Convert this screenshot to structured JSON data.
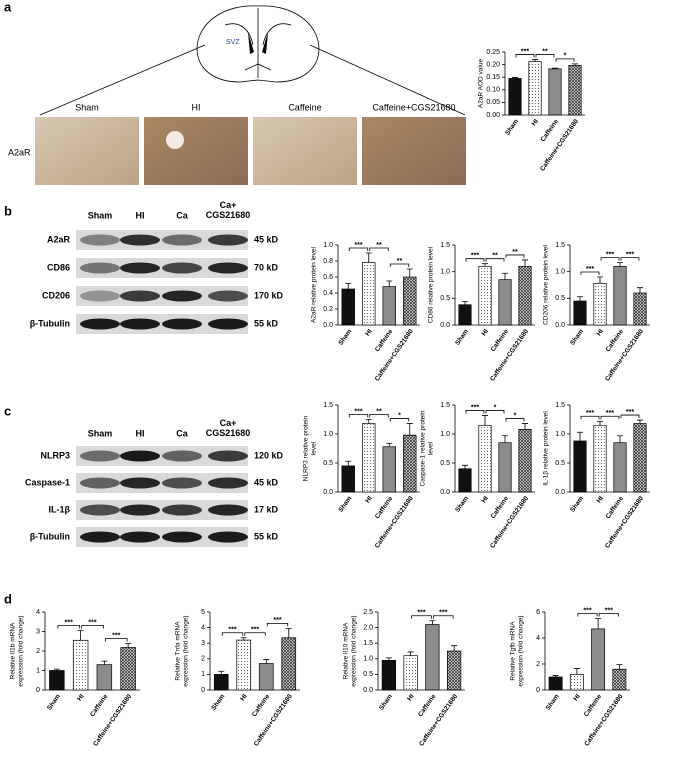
{
  "panels": {
    "a": "a",
    "b": "b",
    "c": "c",
    "d": "d"
  },
  "brain": {
    "region": "SVZ"
  },
  "micrographs": {
    "row_label": "A2aR",
    "columns": [
      "Sham",
      "HI",
      "Caffeine",
      "Caffeine+CGS21680"
    ]
  },
  "blots": [
    {
      "lanes": [
        "Sham",
        "HI",
        "Ca",
        "Ca+ CGS21680"
      ],
      "rows": [
        {
          "name": "A2aR",
          "size": "45 kD"
        },
        {
          "name": "CD86",
          "size": "70 kD"
        },
        {
          "name": "CD206",
          "size": "170 kD"
        },
        {
          "name": "β-Tubulin",
          "size": "55 kD"
        }
      ]
    },
    {
      "lanes": [
        "Sham",
        "HI",
        "Ca",
        "Ca+ CGS21680"
      ],
      "rows": [
        {
          "name": "NLRP3",
          "size": "120 kD"
        },
        {
          "name": "Caspase-1",
          "size": "45 kD"
        },
        {
          "name": "IL-1β",
          "size": "17 kD"
        },
        {
          "name": "β-Tubulin",
          "size": "55 kD"
        }
      ]
    }
  ],
  "chart_data": [
    {
      "type": "bar",
      "y_label": [
        "A2aR AOD value"
      ],
      "categories": [
        "Sham",
        "HI",
        "Caffeine",
        "Caffeine+CGS21680"
      ],
      "values": [
        0.145,
        0.212,
        0.183,
        0.197
      ],
      "errors": [
        0.004,
        0.008,
        0.003,
        0.006
      ],
      "ylim": [
        0,
        0.25
      ],
      "yticks": [
        {
          "value": 0,
          "label": "0.00"
        },
        0.05,
        {
          "value": 0.1,
          "label": "0.10"
        },
        0.15,
        {
          "value": 0.2,
          "label": "0.20"
        },
        0.25
      ],
      "annotations": [
        {
          "from": 0,
          "to": 1,
          "label": "***"
        },
        {
          "from": 1,
          "to": 2,
          "label": "**"
        },
        {
          "from": 2,
          "to": 3,
          "label": "*"
        }
      ]
    },
    {
      "type": "bar",
      "y_label": [
        "A2aR relative protein level"
      ],
      "categories": [
        "Sham",
        "HI",
        "Caffeine",
        "Caffeine+CGS21680"
      ],
      "values": [
        0.45,
        0.78,
        0.48,
        0.6
      ],
      "errors": [
        0.07,
        0.12,
        0.07,
        0.1
      ],
      "ylim": [
        0,
        1
      ],
      "yticks": [
        {
          "value": 0,
          "label": "0.0"
        },
        0.2,
        0.4,
        0.6,
        0.8,
        {
          "value": 1,
          "label": "1.0"
        }
      ],
      "annotations": [
        {
          "from": 0,
          "to": 1,
          "label": "***"
        },
        {
          "from": 1,
          "to": 2,
          "label": "**"
        },
        {
          "from": 2,
          "to": 3,
          "label": "**"
        }
      ]
    },
    {
      "type": "bar",
      "y_label": [
        "CD86 relative protein level"
      ],
      "categories": [
        "Sham",
        "HI",
        "Caffeine",
        "Caffeine+CGS21680"
      ],
      "values": [
        0.38,
        1.1,
        0.85,
        1.1
      ],
      "errors": [
        0.06,
        0.05,
        0.12,
        0.12
      ],
      "ylim": [
        0,
        1.5
      ],
      "yticks": [
        {
          "value": 0,
          "label": "0.0"
        },
        0.5,
        {
          "value": 1,
          "label": "1.0"
        },
        1.5
      ],
      "annotations": [
        {
          "from": 0,
          "to": 1,
          "label": "***"
        },
        {
          "from": 1,
          "to": 2,
          "label": "**"
        },
        {
          "from": 2,
          "to": 3,
          "label": "**"
        }
      ]
    },
    {
      "type": "bar",
      "y_label": [
        "CD206 relative protein level"
      ],
      "categories": [
        "Sham",
        "HI",
        "Caffeine",
        "Caffeine+CGS21680"
      ],
      "values": [
        0.45,
        0.78,
        1.1,
        0.6
      ],
      "errors": [
        0.08,
        0.12,
        0.07,
        0.1
      ],
      "ylim": [
        0,
        1.5
      ],
      "yticks": [
        {
          "value": 0,
          "label": "0.0"
        },
        0.5,
        {
          "value": 1,
          "label": "1.0"
        },
        1.5
      ],
      "annotations": [
        {
          "from": 0,
          "to": 1,
          "label": "***"
        },
        {
          "from": 1,
          "to": 2,
          "label": "***"
        },
        {
          "from": 2,
          "to": 3,
          "label": "***"
        }
      ]
    },
    {
      "type": "bar",
      "y_label": [
        "NLRP3 relative protein",
        "level"
      ],
      "categories": [
        "Sham",
        "HI",
        "Caffeine",
        "Caffeine+CGS21680"
      ],
      "values": [
        0.45,
        1.18,
        0.78,
        0.98
      ],
      "errors": [
        0.08,
        0.07,
        0.06,
        0.2
      ],
      "ylim": [
        0,
        1.5
      ],
      "yticks": [
        {
          "value": 0,
          "label": "0.0"
        },
        0.5,
        {
          "value": 1,
          "label": "1.0"
        },
        1.5
      ],
      "annotations": [
        {
          "from": 0,
          "to": 1,
          "label": "***"
        },
        {
          "from": 1,
          "to": 2,
          "label": "**"
        },
        {
          "from": 2,
          "to": 3,
          "label": "*"
        }
      ]
    },
    {
      "type": "bar",
      "y_label": [
        "Caspase-1 relative protein",
        "level"
      ],
      "categories": [
        "Sham",
        "HI",
        "Caffeine",
        "Caffeine+CGS21680"
      ],
      "values": [
        0.4,
        1.15,
        0.85,
        1.08
      ],
      "errors": [
        0.06,
        0.17,
        0.12,
        0.1
      ],
      "ylim": [
        0,
        1.5
      ],
      "yticks": [
        {
          "value": 0,
          "label": "0.0"
        },
        0.5,
        {
          "value": 1,
          "label": "1.0"
        },
        1.5
      ],
      "annotations": [
        {
          "from": 0,
          "to": 1,
          "label": "***"
        },
        {
          "from": 1,
          "to": 2,
          "label": "*"
        },
        {
          "from": 2,
          "to": 3,
          "label": "*"
        }
      ]
    },
    {
      "type": "bar",
      "y_label": [
        "IL-1β relative protein level"
      ],
      "categories": [
        "Sham",
        "HI",
        "Caffeine",
        "Caffeine+CGS21680"
      ],
      "values": [
        0.88,
        1.15,
        0.85,
        1.18
      ],
      "errors": [
        0.15,
        0.07,
        0.12,
        0.06
      ],
      "ylim": [
        0,
        1.5
      ],
      "yticks": [
        {
          "value": 0,
          "label": "0.0"
        },
        0.5,
        {
          "value": 1,
          "label": "1.0"
        },
        1.5
      ],
      "annotations": [
        {
          "from": 0,
          "to": 1,
          "label": "***"
        },
        {
          "from": 1,
          "to": 2,
          "label": "***"
        },
        {
          "from": 2,
          "to": 3,
          "label": "***"
        }
      ]
    },
    {
      "type": "bar",
      "y_label": [
        "Relative Il1b mRNA",
        "expression (fold change)"
      ],
      "categories": [
        "Sham",
        "HI",
        "Caffeine",
        "Caffeine+CGS21680"
      ],
      "values": [
        1,
        2.55,
        1.3,
        2.18
      ],
      "errors": [
        0.07,
        0.5,
        0.18,
        0.2
      ],
      "ylim": [
        0,
        4
      ],
      "yticks": [
        0,
        1,
        2,
        3,
        4
      ],
      "annotations": [
        {
          "from": 0,
          "to": 1,
          "label": "***"
        },
        {
          "from": 1,
          "to": 2,
          "label": "***"
        },
        {
          "from": 2,
          "to": 3,
          "label": "***"
        }
      ]
    },
    {
      "type": "bar",
      "y_label": [
        "Relative Tnfa mRNA",
        "expression (fold change)"
      ],
      "categories": [
        "Sham",
        "HI",
        "Caffeine",
        "Caffeine+CGS21680"
      ],
      "values": [
        1,
        3.2,
        1.7,
        3.35
      ],
      "errors": [
        0.2,
        0.15,
        0.25,
        0.6
      ],
      "ylim": [
        0,
        5
      ],
      "yticks": [
        0,
        1,
        2,
        3,
        4,
        5
      ],
      "annotations": [
        {
          "from": 0,
          "to": 1,
          "label": "***"
        },
        {
          "from": 1,
          "to": 2,
          "label": "***"
        },
        {
          "from": 2,
          "to": 3,
          "label": "***"
        }
      ]
    },
    {
      "type": "bar",
      "y_label": [
        "Relative Il10 mRNA",
        "expression (fold change)"
      ],
      "categories": [
        "Sham",
        "HI",
        "Caffeine",
        "Caffeine+CGS21680"
      ],
      "values": [
        0.95,
        1.1,
        2.1,
        1.25
      ],
      "errors": [
        0.08,
        0.12,
        0.12,
        0.17
      ],
      "ylim": [
        0,
        2.5
      ],
      "yticks": [
        {
          "value": 0,
          "label": "0.0"
        },
        0.5,
        {
          "value": 1,
          "label": "1.0"
        },
        1.5,
        {
          "value": 2,
          "label": "2.0"
        },
        2.5
      ],
      "annotations": [
        {
          "from": 1,
          "to": 2,
          "label": "***"
        },
        {
          "from": 2,
          "to": 3,
          "label": "***"
        }
      ]
    },
    {
      "type": "bar",
      "y_label": [
        "Relative Tgfb mRNA",
        "expression (fold change)"
      ],
      "categories": [
        "Sham",
        "HI",
        "Caffeine",
        "Caffeine+CGS21680"
      ],
      "values": [
        1,
        1.2,
        4.7,
        1.6
      ],
      "errors": [
        0.12,
        0.45,
        0.8,
        0.35
      ],
      "ylim": [
        0,
        6
      ],
      "yticks": [
        0,
        2,
        4,
        6
      ],
      "annotations": [
        {
          "from": 1,
          "to": 2,
          "label": "***"
        },
        {
          "from": 2,
          "to": 3,
          "label": "***"
        }
      ]
    }
  ]
}
